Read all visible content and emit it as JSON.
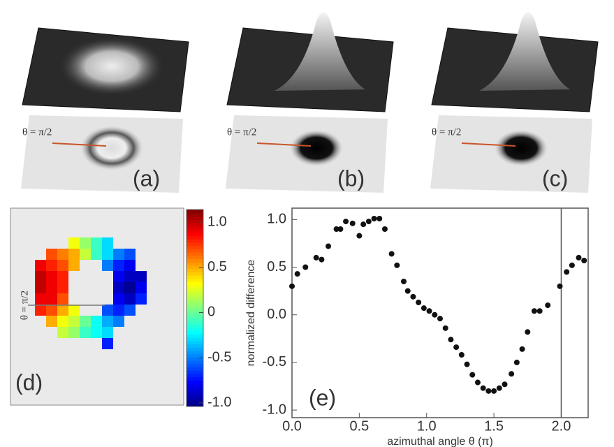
{
  "panels": [
    {
      "label": "(a)",
      "angle": "θ = π/2"
    },
    {
      "label": "(b)",
      "angle": "θ = π/2"
    },
    {
      "label": "(c)",
      "angle": "θ = π/2"
    }
  ],
  "heatmap": {
    "label": "(d)",
    "angle": "θ = π/2",
    "clim": [
      -1.04,
      1.14
    ],
    "ticks": [
      {
        "value": 1,
        "label": "1.0"
      },
      0.5,
      0,
      -0.5,
      {
        "value": -1,
        "label": "-1.0"
      }
    ],
    "cells": [
      [
        null,
        null,
        null,
        0.3,
        0.1,
        -0.1,
        -0.3,
        null,
        null,
        null
      ],
      [
        null,
        0.7,
        0.6,
        0.5,
        0.2,
        -0.1,
        -0.3,
        -0.5,
        -0.6,
        null
      ],
      [
        0.9,
        0.8,
        0.7,
        0.5,
        null,
        null,
        -0.5,
        -0.7,
        -0.8,
        null
      ],
      [
        1.0,
        0.9,
        0.8,
        null,
        null,
        null,
        null,
        -0.8,
        -0.9,
        -0.9
      ],
      [
        1.0,
        0.9,
        0.8,
        null,
        null,
        null,
        null,
        -0.9,
        -1.0,
        -0.8
      ],
      [
        0.9,
        0.9,
        0.7,
        null,
        null,
        null,
        null,
        -0.8,
        -0.9,
        -0.7
      ],
      [
        0.8,
        0.7,
        0.5,
        0.3,
        null,
        null,
        -0.6,
        -0.7,
        -0.6,
        null
      ],
      [
        null,
        0.5,
        0.3,
        0.2,
        0.0,
        -0.2,
        -0.4,
        -0.5,
        null,
        null
      ],
      [
        null,
        null,
        0.2,
        0.1,
        -0.1,
        -0.2,
        -0.3,
        null,
        null,
        null
      ],
      [
        null,
        null,
        null,
        null,
        null,
        null,
        -0.7,
        null,
        null,
        null
      ]
    ]
  },
  "chart_data": {
    "type": "scatter",
    "label": "(e)",
    "xlabel": "azimuthal angle θ (π)",
    "ylabel": "normalized difference",
    "color": "#111111",
    "vline": 2.0,
    "xlim": [
      0,
      2.2
    ],
    "ylim": [
      -1.08,
      1.12
    ],
    "xticks": [
      {
        "value": 0,
        "label": "0.0"
      },
      0.5,
      {
        "value": 1,
        "label": "1.0"
      },
      1.5,
      {
        "value": 2,
        "label": "2.0"
      }
    ],
    "yticks": [
      {
        "value": -1,
        "label": "-1.0"
      },
      -0.5,
      {
        "value": 0,
        "label": "0.0"
      },
      0.5,
      {
        "value": 1,
        "label": "1.0"
      }
    ],
    "x": [
      0.0,
      0.04,
      0.1,
      0.18,
      0.22,
      0.27,
      0.33,
      0.36,
      0.4,
      0.45,
      0.5,
      0.53,
      0.57,
      0.61,
      0.65,
      0.69,
      0.74,
      0.78,
      0.83,
      0.86,
      0.9,
      0.94,
      0.98,
      1.02,
      1.06,
      1.1,
      1.14,
      1.18,
      1.22,
      1.26,
      1.3,
      1.34,
      1.38,
      1.42,
      1.46,
      1.5,
      1.54,
      1.58,
      1.63,
      1.67,
      1.71,
      1.75,
      1.8,
      1.84,
      1.9,
      1.99,
      2.04,
      2.08,
      2.13,
      2.17
    ],
    "values": [
      0.3,
      0.43,
      0.5,
      0.6,
      0.58,
      0.72,
      0.9,
      0.9,
      0.98,
      0.96,
      0.83,
      0.95,
      0.98,
      1.01,
      1.01,
      0.9,
      0.64,
      0.52,
      0.35,
      0.25,
      0.19,
      0.13,
      0.07,
      0.04,
      0.0,
      -0.04,
      -0.14,
      -0.26,
      -0.34,
      -0.42,
      -0.52,
      -0.63,
      -0.71,
      -0.77,
      -0.8,
      -0.8,
      -0.77,
      -0.73,
      -0.62,
      -0.5,
      -0.36,
      -0.18,
      0.04,
      0.04,
      0.1,
      0.3,
      0.45,
      0.52,
      0.6,
      0.57
    ]
  }
}
